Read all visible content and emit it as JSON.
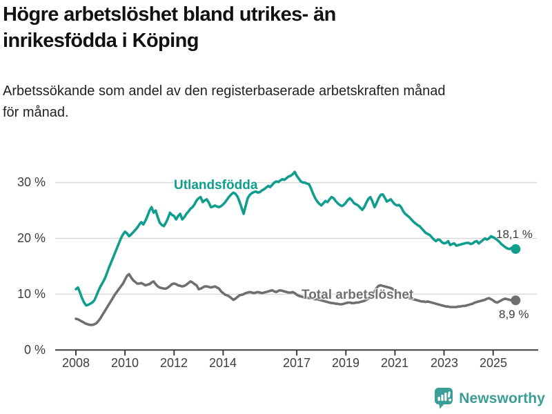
{
  "title": {
    "line1": "Högre arbetslöshet bland utrikes- än",
    "line2": "inrikesfödda i Köping"
  },
  "subtitle": {
    "line1": "Arbetssökande som andel av den registerbaserade arbetskraften månad",
    "line2": "för månad."
  },
  "footer": {
    "brand": "Newsworthy"
  },
  "colors": {
    "accent_teal": "#0f9d8d",
    "series_gray": "#6f6f6f",
    "grid": "#d9d9d9",
    "axis": "#3d3d3d",
    "tick_text": "#3d3d3d",
    "value_text": "#3a3a3a",
    "logo_teal": "#3b9e96"
  },
  "chart_data": {
    "type": "line",
    "title": "Högre arbetslöshet bland utrikes- än inrikesfödda i Köping",
    "subtitle": "Arbetssökande som andel av den registerbaserade arbetskraften månad för månad.",
    "unit": "%",
    "grid": "horizontal",
    "legend_position": "inline-labels",
    "x_axis": {
      "range": [
        2007.2,
        2026.2
      ],
      "ticks": [
        2008,
        2010,
        2012,
        2014,
        2017,
        2019,
        2021,
        2023,
        2025
      ],
      "labels": [
        "2008",
        "2010",
        "2012",
        "2014",
        "2017",
        "2019",
        "2021",
        "2023",
        "2025"
      ]
    },
    "y_axis": {
      "range": [
        0,
        33
      ],
      "ticks": [
        0,
        10,
        20,
        30
      ],
      "labels": [
        "0 %",
        "10 %",
        "20 %",
        "30 %"
      ]
    },
    "series": [
      {
        "name": "Utlandsfödda",
        "color": "#0f9d8d",
        "start_year": 2008.0,
        "points_per_year": 12,
        "end_label": "18,1 %",
        "last_value": 18.1,
        "values": [
          10.9,
          11.2,
          10.3,
          9.3,
          8.5,
          8.0,
          8.1,
          8.3,
          8.5,
          8.9,
          9.7,
          10.6,
          11.4,
          12.0,
          12.7,
          13.6,
          14.6,
          15.5,
          16.4,
          17.3,
          18.2,
          19.1,
          20.0,
          20.7,
          21.2,
          20.9,
          20.4,
          20.7,
          21.1,
          21.5,
          21.9,
          22.5,
          22.9,
          22.5,
          23.2,
          24.0,
          25.0,
          25.6,
          24.6,
          25.0,
          23.8,
          22.8,
          22.4,
          22.2,
          22.8,
          23.6,
          24.6,
          24.2,
          24.0,
          23.4,
          24.0,
          24.4,
          23.4,
          23.8,
          24.4,
          24.8,
          25.3,
          25.6,
          26.1,
          26.8,
          27.2,
          27.4,
          26.5,
          26.8,
          27.0,
          26.4,
          25.6,
          25.7,
          25.9,
          25.7,
          25.6,
          25.8,
          26.1,
          26.5,
          27.0,
          27.5,
          27.9,
          28.2,
          28.0,
          27.5,
          26.6,
          25.5,
          24.4,
          25.8,
          27.2,
          27.8,
          28.1,
          28.3,
          28.4,
          28.2,
          28.3,
          28.6,
          28.8,
          29.1,
          29.4,
          29.2,
          29.6,
          30.0,
          30.2,
          30.1,
          30.4,
          30.6,
          30.5,
          30.8,
          31.1,
          31.2,
          31.5,
          31.9,
          31.2,
          30.7,
          30.2,
          30.0,
          30.0,
          29.8,
          29.7,
          28.9,
          28.0,
          27.2,
          26.6,
          26.2,
          25.9,
          26.3,
          26.7,
          26.5,
          27.0,
          27.4,
          27.2,
          26.7,
          26.3,
          26.0,
          25.8,
          26.0,
          26.4,
          26.9,
          27.2,
          26.8,
          26.3,
          26.1,
          25.9,
          25.5,
          25.1,
          25.6,
          26.4,
          27.1,
          27.4,
          26.6,
          25.6,
          26.3,
          27.2,
          27.8,
          27.9,
          27.3,
          26.6,
          26.8,
          27.0,
          26.5,
          26.1,
          25.9,
          26.0,
          25.6,
          24.9,
          24.4,
          24.1,
          23.8,
          23.4,
          23.0,
          22.7,
          22.4,
          22.2,
          21.8,
          21.4,
          21.0,
          20.8,
          20.6,
          20.2,
          19.8,
          19.5,
          19.8,
          19.7,
          19.3,
          19.1,
          19.2,
          19.5,
          18.8,
          19.0,
          19.1,
          18.7,
          18.8,
          18.9,
          19.0,
          19.1,
          19.2,
          19.2,
          19.0,
          19.1,
          19.4,
          19.5,
          19.1,
          19.4,
          19.7,
          20.0,
          19.8,
          20.0,
          20.4,
          20.2,
          20.0,
          19.7,
          19.4,
          19.0,
          18.7,
          18.4,
          18.2,
          18.1,
          18.3,
          18.2,
          18.1
        ]
      },
      {
        "name": "Total arbetslöshet",
        "color": "#6f6f6f",
        "start_year": 2008.0,
        "points_per_year": 12,
        "end_label": "8,9 %",
        "last_value": 8.9,
        "values": [
          5.6,
          5.5,
          5.3,
          5.1,
          4.9,
          4.7,
          4.6,
          4.5,
          4.5,
          4.6,
          4.8,
          5.2,
          5.7,
          6.3,
          6.9,
          7.5,
          8.1,
          8.7,
          9.3,
          9.9,
          10.4,
          10.9,
          11.4,
          11.9,
          12.6,
          13.3,
          13.6,
          13.0,
          12.5,
          12.2,
          11.9,
          11.9,
          12.0,
          11.8,
          11.6,
          11.7,
          11.8,
          12.1,
          12.3,
          11.8,
          11.4,
          11.2,
          11.1,
          11.0,
          11.0,
          11.2,
          11.5,
          11.8,
          11.9,
          11.8,
          11.6,
          11.5,
          11.4,
          11.5,
          11.7,
          12.0,
          12.3,
          12.1,
          11.8,
          11.6,
          10.9,
          11.0,
          11.2,
          11.4,
          11.4,
          11.3,
          11.2,
          11.3,
          11.4,
          11.2,
          11.0,
          10.5,
          10.2,
          9.9,
          9.8,
          9.6,
          9.3,
          9.0,
          9.2,
          9.5,
          9.8,
          9.9,
          10.0,
          10.2,
          10.3,
          10.4,
          10.3,
          10.2,
          10.3,
          10.4,
          10.3,
          10.2,
          10.3,
          10.4,
          10.5,
          10.6,
          10.7,
          10.5,
          10.4,
          10.6,
          10.7,
          10.6,
          10.5,
          10.4,
          10.3,
          10.3,
          10.4,
          10.2,
          9.9,
          9.7,
          9.6,
          9.5,
          9.4,
          9.4,
          9.3,
          9.3,
          9.2,
          9.1,
          9.1,
          9.0,
          8.9,
          8.8,
          8.7,
          8.6,
          8.5,
          8.4,
          8.4,
          8.3,
          8.3,
          8.2,
          8.2,
          8.3,
          8.4,
          8.5,
          8.5,
          8.4,
          8.4,
          8.5,
          8.5,
          8.6,
          8.7,
          8.8,
          9.0,
          9.2,
          9.5,
          9.9,
          10.5,
          11.1,
          11.5,
          11.6,
          11.5,
          11.4,
          11.3,
          11.2,
          11.1,
          10.9,
          10.7,
          10.5,
          10.3,
          10.1,
          9.9,
          9.7,
          9.5,
          9.3,
          9.2,
          9.1,
          9.0,
          8.9,
          8.8,
          8.7,
          8.7,
          8.6,
          8.7,
          8.6,
          8.5,
          8.4,
          8.3,
          8.2,
          8.1,
          8.0,
          7.9,
          7.8,
          7.8,
          7.7,
          7.7,
          7.7,
          7.7,
          7.8,
          7.8,
          7.9,
          7.9,
          8.0,
          8.1,
          8.2,
          8.3,
          8.5,
          8.6,
          8.7,
          8.8,
          8.9,
          9.0,
          9.2,
          9.3,
          9.1,
          8.9,
          8.6,
          8.5,
          8.7,
          8.9,
          9.1,
          9.2,
          9.1,
          9.0,
          8.9,
          8.9,
          8.9
        ]
      }
    ]
  }
}
